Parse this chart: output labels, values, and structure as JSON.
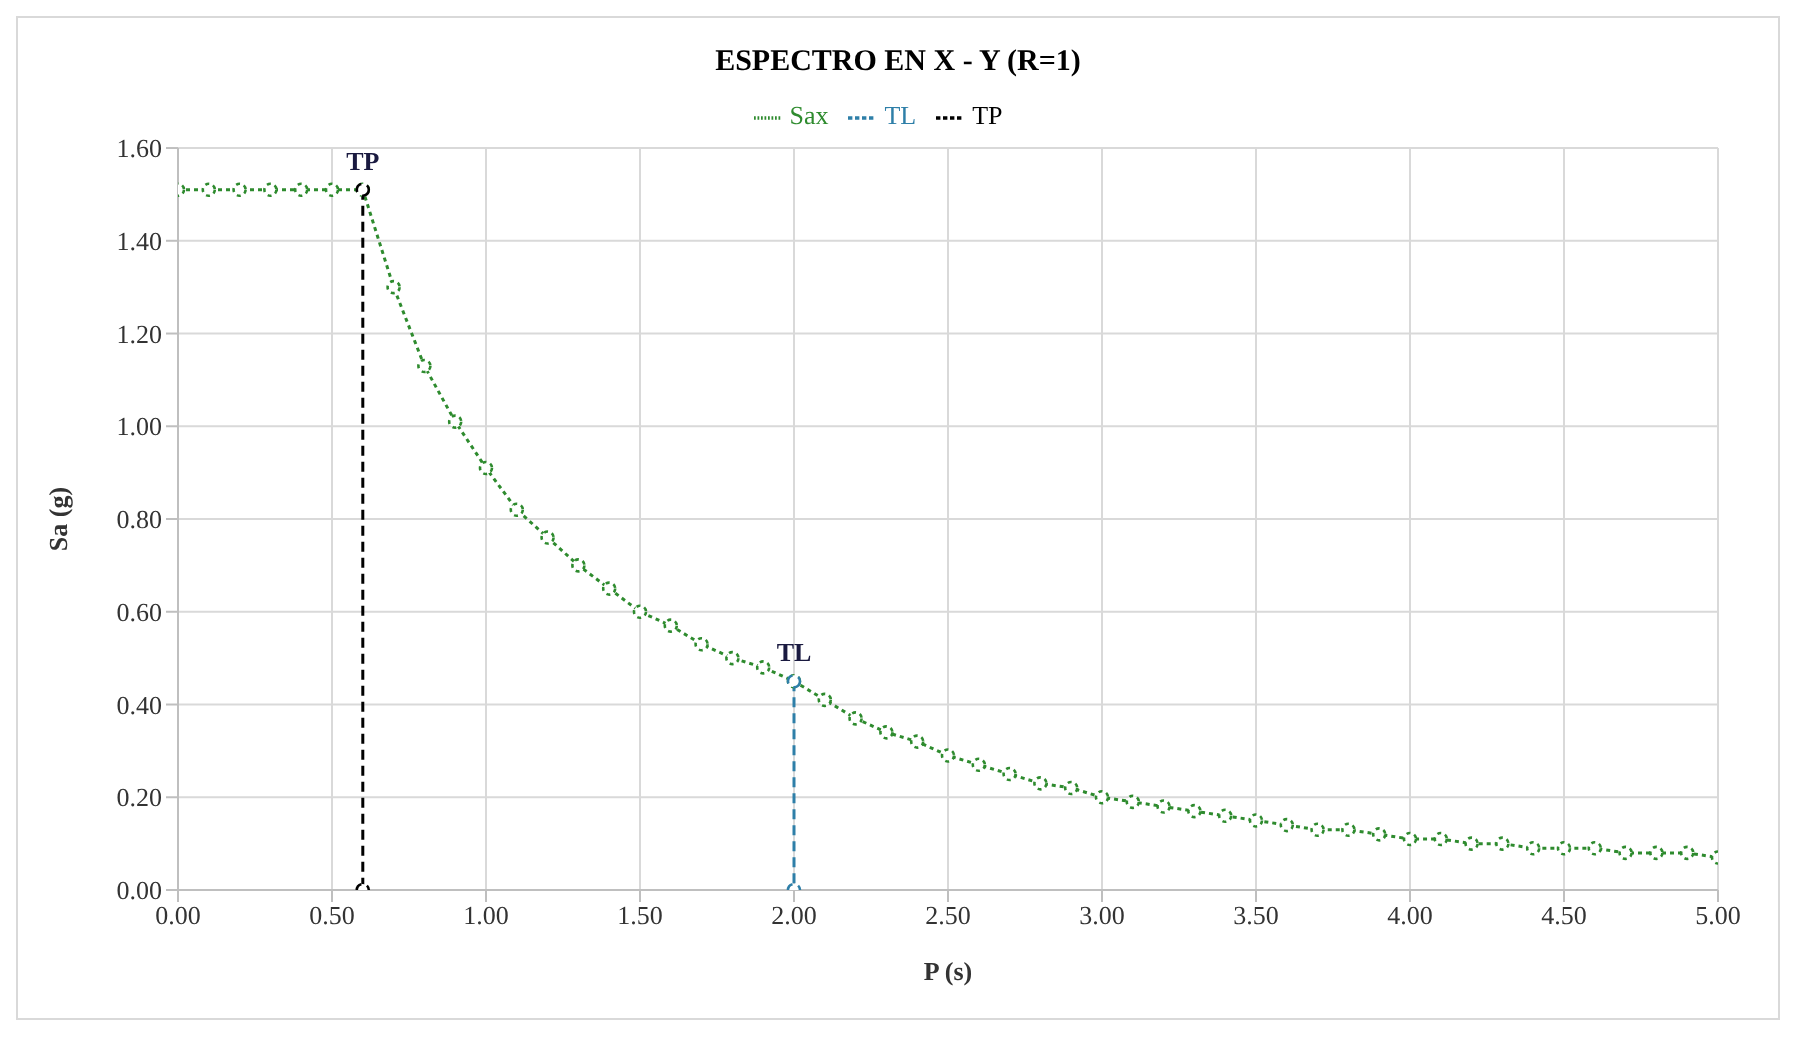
{
  "chart_data": {
    "type": "line",
    "title": "ESPECTRO EN X - Y (R=1)",
    "xlabel": "P (s)",
    "ylabel": "Sa (g)",
    "xlim": [
      0,
      5
    ],
    "xticks": [
      {
        "value": 0,
        "label": "0.00"
      },
      {
        "value": 0.5,
        "label": "0.50"
      },
      {
        "value": 1,
        "label": "1.00"
      },
      {
        "value": 1.5,
        "label": "1.50"
      },
      {
        "value": 2,
        "label": "2.00"
      },
      {
        "value": 2.5,
        "label": "2.50"
      },
      {
        "value": 3,
        "label": "3.00"
      },
      {
        "value": 3.5,
        "label": "3.50"
      },
      {
        "value": 4,
        "label": "4.00"
      },
      {
        "value": 4.5,
        "label": "4.50"
      },
      {
        "value": 5,
        "label": "5.00"
      }
    ],
    "ylim": [
      0,
      1.6
    ],
    "yticks": [
      {
        "value": 0,
        "label": "0.00"
      },
      {
        "value": 0.2,
        "label": "0.20"
      },
      {
        "value": 0.4,
        "label": "0.40"
      },
      {
        "value": 0.6,
        "label": "0.60"
      },
      {
        "value": 0.8,
        "label": "0.80"
      },
      {
        "value": 1,
        "label": "1.00"
      },
      {
        "value": 1.2,
        "label": "1.20"
      },
      {
        "value": 1.4,
        "label": "1.40"
      },
      {
        "value": 1.6,
        "label": "1.60"
      }
    ],
    "grid": true,
    "legend": "top",
    "marker": "circle",
    "series": [
      {
        "name": "Sax",
        "color": "#2e8b2e",
        "line_style": "dotted",
        "x": [
          0,
          0.1,
          0.2,
          0.3,
          0.4,
          0.5,
          0.6,
          0.7,
          0.8,
          0.9,
          1.0,
          1.1,
          1.2,
          1.3,
          1.4,
          1.5,
          1.6,
          1.7,
          1.8,
          1.9,
          2.0,
          2.1,
          2.2,
          2.3,
          2.4,
          2.5,
          2.6,
          2.7,
          2.8,
          2.9,
          3.0,
          3.1,
          3.2,
          3.3,
          3.4,
          3.5,
          3.6,
          3.7,
          3.8,
          3.9,
          4.0,
          4.1,
          4.2,
          4.3,
          4.4,
          4.5,
          4.6,
          4.7,
          4.8,
          4.9,
          5.0
        ],
        "values": [
          1.51,
          1.51,
          1.51,
          1.51,
          1.51,
          1.51,
          1.51,
          1.3,
          1.13,
          1.01,
          0.91,
          0.82,
          0.76,
          0.7,
          0.65,
          0.6,
          0.57,
          0.53,
          0.5,
          0.48,
          0.45,
          0.41,
          0.37,
          0.34,
          0.32,
          0.29,
          0.27,
          0.25,
          0.23,
          0.22,
          0.2,
          0.19,
          0.18,
          0.17,
          0.16,
          0.15,
          0.14,
          0.13,
          0.13,
          0.12,
          0.11,
          0.11,
          0.1,
          0.1,
          0.09,
          0.09,
          0.09,
          0.08,
          0.08,
          0.08,
          0.07
        ]
      },
      {
        "name": "TP",
        "color": "#000000",
        "line_style": "dashed",
        "x": [
          0.6,
          0.6
        ],
        "values": [
          1.51,
          0
        ]
      },
      {
        "name": "TL",
        "color": "#2e7fa8",
        "line_style": "dashed",
        "x": [
          2.0,
          2.0
        ],
        "values": [
          0.45,
          0
        ]
      }
    ],
    "annotations": [
      {
        "text": "TP",
        "x": 0.6,
        "y": 1.51
      },
      {
        "text": "TL",
        "x": 2.0,
        "y": 0.45
      }
    ]
  }
}
